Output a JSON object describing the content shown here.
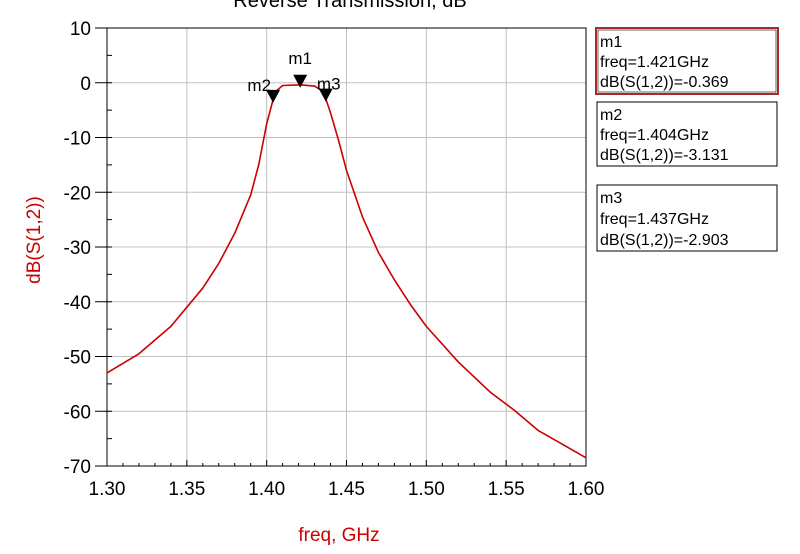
{
  "chart_data": {
    "type": "line",
    "title": "Reverse Transmission, dB",
    "xlabel": "freq, GHz",
    "ylabel": "dB(S(1,2))",
    "xlim": [
      1.3,
      1.6
    ],
    "ylim": [
      -70,
      10
    ],
    "x_ticks": [
      1.3,
      1.35,
      1.4,
      1.45,
      1.5,
      1.55,
      1.6
    ],
    "x_tick_labels": [
      "1.30",
      "1.35",
      "1.40",
      "1.45",
      "1.50",
      "1.55",
      "1.60"
    ],
    "y_ticks": [
      10,
      0,
      -10,
      -20,
      -30,
      -40,
      -50,
      -60,
      -70
    ],
    "y_tick_labels": [
      "10",
      "0",
      "-10",
      "-20",
      "-30",
      "-40",
      "-50",
      "-60",
      "-70"
    ],
    "grid": true,
    "colors": {
      "trace": "#cc0000",
      "ylabel": "#cc0000",
      "xlabel": "#cc0000",
      "marker": "#000000",
      "box_active": "#a52a2a"
    },
    "series": [
      {
        "name": "dB(S(1,2))",
        "x": [
          1.3,
          1.32,
          1.34,
          1.36,
          1.37,
          1.38,
          1.39,
          1.395,
          1.4,
          1.403,
          1.404,
          1.406,
          1.41,
          1.421,
          1.43,
          1.435,
          1.437,
          1.44,
          1.445,
          1.45,
          1.46,
          1.47,
          1.48,
          1.49,
          1.5,
          1.52,
          1.54,
          1.555,
          1.57,
          1.585,
          1.6
        ],
        "y": [
          -53.0,
          -49.5,
          -44.5,
          -37.5,
          -33.0,
          -27.5,
          -20.5,
          -15.0,
          -7.5,
          -4.2,
          -3.131,
          -1.5,
          -0.5,
          -0.369,
          -0.6,
          -1.5,
          -2.903,
          -5.5,
          -10.5,
          -16.0,
          -24.5,
          -31.0,
          -36.0,
          -40.5,
          -44.5,
          -51.0,
          -56.5,
          -59.8,
          -63.5,
          -66.0,
          -68.5
        ]
      }
    ],
    "markers": [
      {
        "id": "m1",
        "x": 1.421,
        "y": -0.369,
        "freq_text": "freq=1.421GHz",
        "value_text": "dB(S(1,2))=-0.369",
        "active": true
      },
      {
        "id": "m2",
        "x": 1.404,
        "y": -3.131,
        "freq_text": "freq=1.404GHz",
        "value_text": "dB(S(1,2))=-3.131",
        "active": false
      },
      {
        "id": "m3",
        "x": 1.437,
        "y": -2.903,
        "freq_text": "freq=1.437GHz",
        "value_text": "dB(S(1,2))=-2.903",
        "active": false
      }
    ]
  }
}
